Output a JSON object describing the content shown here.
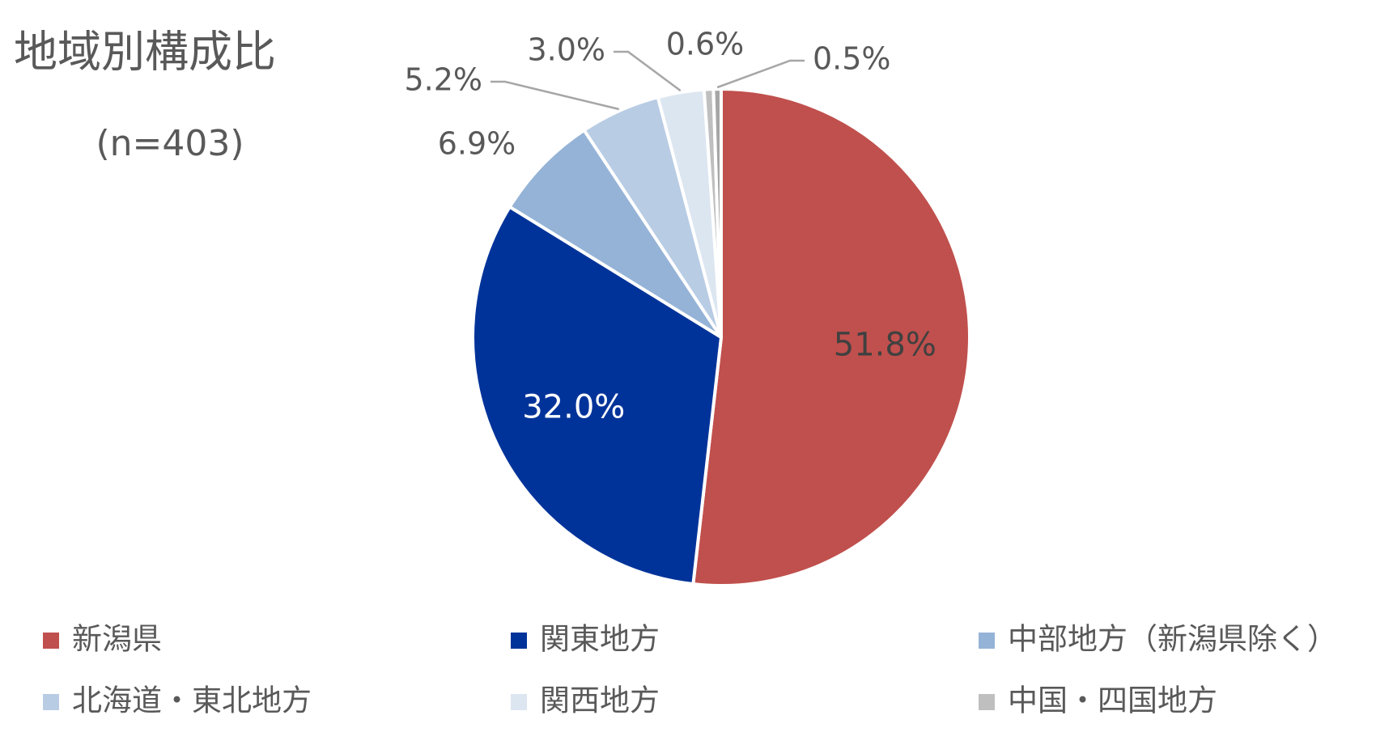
{
  "chart_data": {
    "type": "pie",
    "title": "地域別構成比",
    "subtitle": "(n=403)",
    "categories": [
      "新潟県",
      "関東地方",
      "中部地方（新潟県除く）",
      "北海道・東北地方",
      "関西地方",
      "中国・四国地方",
      null
    ],
    "values": [
      51.8,
      32.0,
      6.9,
      5.2,
      3.0,
      0.6,
      0.5
    ],
    "value_labels": [
      "51.8%",
      "32.0%",
      "6.9%",
      "5.2%",
      "3.0%",
      "0.6%",
      "0.5%"
    ],
    "colors": [
      "#c0504d",
      "#003399",
      "#95b3d7",
      "#b8cce4",
      "#dce6f1",
      "#bfbfbf",
      "#a6a6a6"
    ],
    "legend": "bottom"
  }
}
